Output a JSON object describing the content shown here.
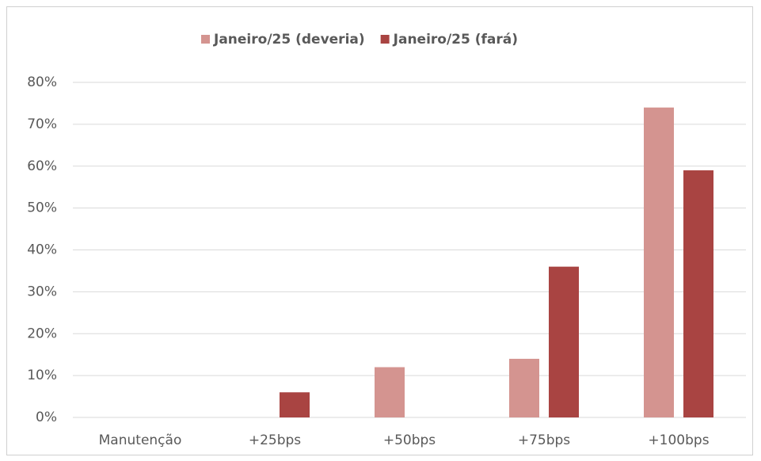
{
  "chart_data": {
    "type": "bar",
    "categories": [
      "Manutenção",
      "+25bps",
      "+50bps",
      "+75bps",
      "+100bps"
    ],
    "series": [
      {
        "name": "Janeiro/25 (deveria)",
        "color": "#d49490",
        "values": [
          0,
          0,
          12,
          14,
          74
        ]
      },
      {
        "name": "Janeiro/25 (fará)",
        "color": "#a94442",
        "values": [
          0,
          6,
          0,
          36,
          59
        ]
      }
    ],
    "ylim": [
      0,
      80
    ],
    "yticks": [
      {
        "value": 0,
        "label": "0%"
      },
      {
        "value": 10,
        "label": "10%"
      },
      {
        "value": 20,
        "label": "20%"
      },
      {
        "value": 30,
        "label": "30%"
      },
      {
        "value": 40,
        "label": "40%"
      },
      {
        "value": 50,
        "label": "50%"
      },
      {
        "value": 60,
        "label": "60%"
      },
      {
        "value": 70,
        "label": "70%"
      },
      {
        "value": 80,
        "label": "80%"
      }
    ],
    "grid": true,
    "legend": "top"
  }
}
